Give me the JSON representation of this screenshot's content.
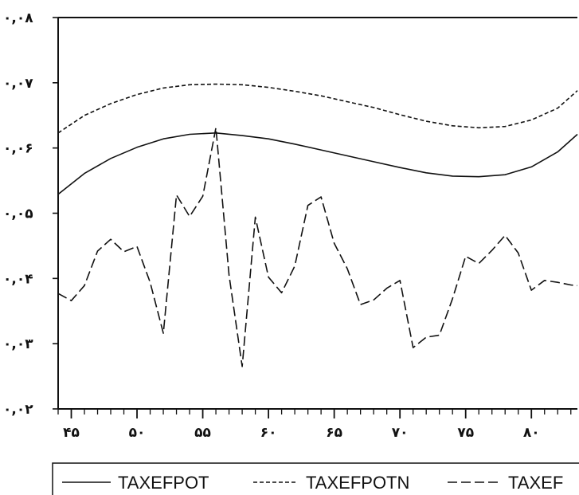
{
  "chart_data": {
    "type": "line",
    "title": "",
    "xlabel": "",
    "ylabel": "",
    "xlim": [
      44,
      83.5
    ],
    "ylim": [
      0.02,
      0.08
    ],
    "grid": false,
    "legend_position": "bottom",
    "x_ticks": [
      {
        "value": 45,
        "label": "۴۵"
      },
      {
        "value": 50,
        "label": "۵۰"
      },
      {
        "value": 55,
        "label": "۵۵"
      },
      {
        "value": 60,
        "label": "۶۰"
      },
      {
        "value": 65,
        "label": "۶۵"
      },
      {
        "value": 70,
        "label": "۷۰"
      },
      {
        "value": 75,
        "label": "۷۵"
      },
      {
        "value": 80,
        "label": "۸۰"
      }
    ],
    "y_ticks": [
      {
        "value": 0.02,
        "label": "۰,۰۲"
      },
      {
        "value": 0.03,
        "label": "۰,۰۳"
      },
      {
        "value": 0.04,
        "label": "۰,۰۴"
      },
      {
        "value": 0.05,
        "label": "۰,۰۵"
      },
      {
        "value": 0.06,
        "label": "۰,۰۶"
      },
      {
        "value": 0.07,
        "label": "۰,۰۷"
      },
      {
        "value": 0.08,
        "label": "۰,۰۸"
      }
    ],
    "series": [
      {
        "name": "TAXEFPOT",
        "style": "solid",
        "x": [
          44,
          46,
          48,
          50,
          52,
          54,
          56,
          58,
          60,
          62,
          64,
          66,
          68,
          70,
          72,
          74,
          76,
          78,
          80,
          82,
          83.5
        ],
        "y": [
          0.0529,
          0.0561,
          0.0584,
          0.0601,
          0.0614,
          0.0621,
          0.0623,
          0.0619,
          0.0614,
          0.0606,
          0.0597,
          0.0588,
          0.0579,
          0.057,
          0.0562,
          0.0557,
          0.0556,
          0.0559,
          0.0571,
          0.0594,
          0.0621
        ]
      },
      {
        "name": "TAXEFPOTN",
        "style": "short-dash",
        "x": [
          44,
          46,
          48,
          50,
          52,
          54,
          56,
          58,
          60,
          62,
          64,
          66,
          68,
          70,
          72,
          74,
          76,
          78,
          80,
          82,
          83.5
        ],
        "y": [
          0.0623,
          0.065,
          0.0668,
          0.0682,
          0.0692,
          0.0697,
          0.0698,
          0.0697,
          0.0693,
          0.0687,
          0.068,
          0.0671,
          0.0662,
          0.0651,
          0.0641,
          0.0634,
          0.0631,
          0.0633,
          0.0643,
          0.0661,
          0.0688
        ]
      },
      {
        "name": "TAXEF",
        "style": "long-dash",
        "x": [
          44,
          45,
          46,
          47,
          48,
          49,
          50,
          51,
          52,
          53,
          54,
          55,
          56,
          57,
          58,
          59,
          60,
          61,
          62,
          63,
          64,
          65,
          66,
          67,
          68,
          69,
          70,
          71,
          72,
          73,
          74,
          75,
          76,
          77,
          78,
          79,
          80,
          81,
          82,
          83,
          83.5
        ],
        "y": [
          0.0377,
          0.0366,
          0.0389,
          0.0442,
          0.046,
          0.0441,
          0.0449,
          0.0394,
          0.0316,
          0.0528,
          0.0495,
          0.0526,
          0.0631,
          0.0405,
          0.0265,
          0.0494,
          0.0402,
          0.0378,
          0.0419,
          0.0512,
          0.0525,
          0.0454,
          0.0415,
          0.036,
          0.0367,
          0.0385,
          0.0397,
          0.0294,
          0.031,
          0.0313,
          0.0369,
          0.0434,
          0.0423,
          0.0443,
          0.0466,
          0.0439,
          0.0382,
          0.0397,
          0.0394,
          0.039,
          0.0389
        ]
      }
    ],
    "legend": [
      "TAXEFPOT",
      "TAXEFPOTN",
      "TAXEF"
    ],
    "colors": {
      "line": "#111111",
      "background": "#ffffff"
    }
  }
}
